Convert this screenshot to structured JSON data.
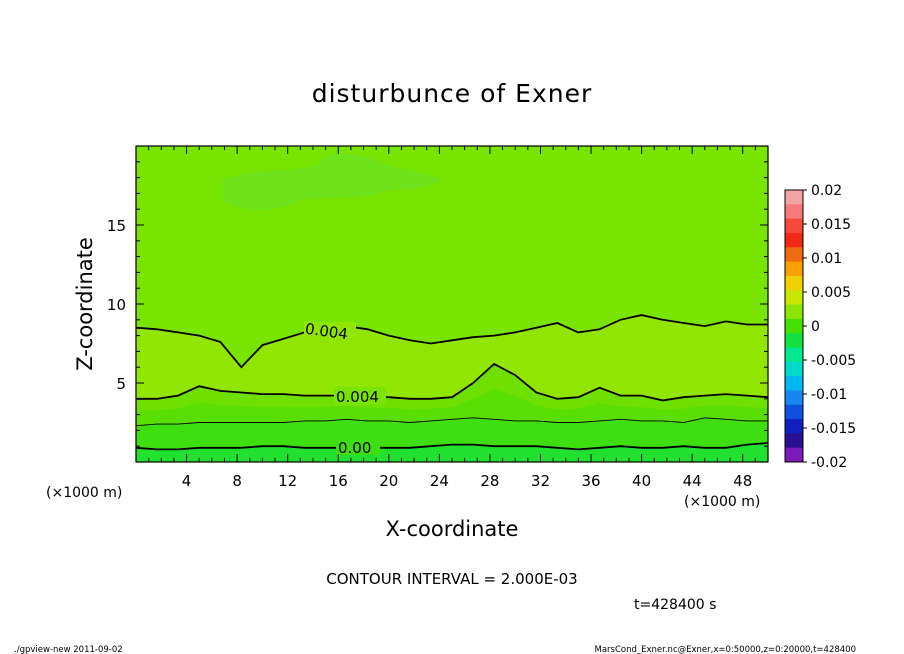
{
  "chart_data": {
    "type": "heatmap",
    "title": "disturbunce of Exner",
    "xlabel": "X-coordinate",
    "ylabel": "Z-coordinate",
    "x_unit": "(×1000 m)",
    "y_unit": "(×1000 m)",
    "xlim": [
      0,
      50
    ],
    "ylim": [
      0,
      20
    ],
    "x_ticks": [
      4,
      8,
      12,
      16,
      20,
      24,
      28,
      32,
      36,
      40,
      44,
      48
    ],
    "y_ticks": [
      5,
      10,
      15
    ],
    "colorbar": {
      "ticks": [
        "0.02",
        "0.015",
        "0.01",
        "0.005",
        "0",
        "-0.005",
        "-0.01",
        "-0.015",
        "-0.02"
      ],
      "range": [
        -0.02,
        0.02
      ],
      "colors": [
        "#f4a3a3",
        "#f67a7a",
        "#f54a3a",
        "#f22a15",
        "#f06a10",
        "#f8a000",
        "#f0d000",
        "#c8e800",
        "#8ce600",
        "#44e000",
        "#14e040",
        "#00e890",
        "#00d8c8",
        "#00b8f0",
        "#1888f0",
        "#1050e0",
        "#1020c0",
        "#2a1090",
        "#7a1ab8"
      ]
    },
    "contours": [
      {
        "label": "0.004",
        "z": [
          8.5,
          8.4,
          8.2,
          8.0,
          7.6,
          6.0,
          7.4,
          7.8,
          8.2,
          8.5,
          8.6,
          8.4,
          8.0,
          7.7,
          7.5,
          7.7,
          7.9,
          8.0,
          8.2,
          8.5,
          8.8,
          8.2,
          8.4,
          9.0,
          9.3,
          9.0,
          8.8,
          8.6,
          8.9,
          8.7,
          8.7
        ]
      },
      {
        "label": "0.004",
        "z": [
          4.0,
          4.0,
          4.2,
          4.8,
          4.5,
          4.4,
          4.3,
          4.3,
          4.2,
          4.2,
          4.2,
          4.1,
          4.1,
          4.0,
          4.0,
          4.1,
          5.0,
          6.2,
          5.5,
          4.4,
          4.0,
          4.1,
          4.7,
          4.2,
          4.2,
          3.9,
          4.1,
          4.2,
          4.3,
          4.2,
          4.1
        ]
      },
      {
        "label": "",
        "z": [
          2.3,
          2.4,
          2.4,
          2.5,
          2.5,
          2.5,
          2.5,
          2.5,
          2.6,
          2.6,
          2.7,
          2.6,
          2.6,
          2.5,
          2.6,
          2.7,
          2.8,
          2.7,
          2.6,
          2.6,
          2.5,
          2.5,
          2.6,
          2.7,
          2.6,
          2.6,
          2.5,
          2.8,
          2.7,
          2.6,
          2.6
        ]
      },
      {
        "label": "0.00",
        "z": [
          0.9,
          0.8,
          0.8,
          0.9,
          0.9,
          0.9,
          1.0,
          1.0,
          0.9,
          0.9,
          0.9,
          0.9,
          0.9,
          0.9,
          1.0,
          1.1,
          1.1,
          1.0,
          1.0,
          1.0,
          0.9,
          0.8,
          0.9,
          1.0,
          0.9,
          0.9,
          1.0,
          0.9,
          0.9,
          1.1,
          1.2
        ]
      }
    ],
    "annotations": {
      "interval": "CONTOUR INTERVAL = 2.000E-03",
      "time": "t=428400  s"
    }
  },
  "footer": {
    "left": "./gpview-new   2011-09-02",
    "right": "MarsCond_Exner.nc@Exner,x=0:50000,z=0:20000,t=428400"
  }
}
